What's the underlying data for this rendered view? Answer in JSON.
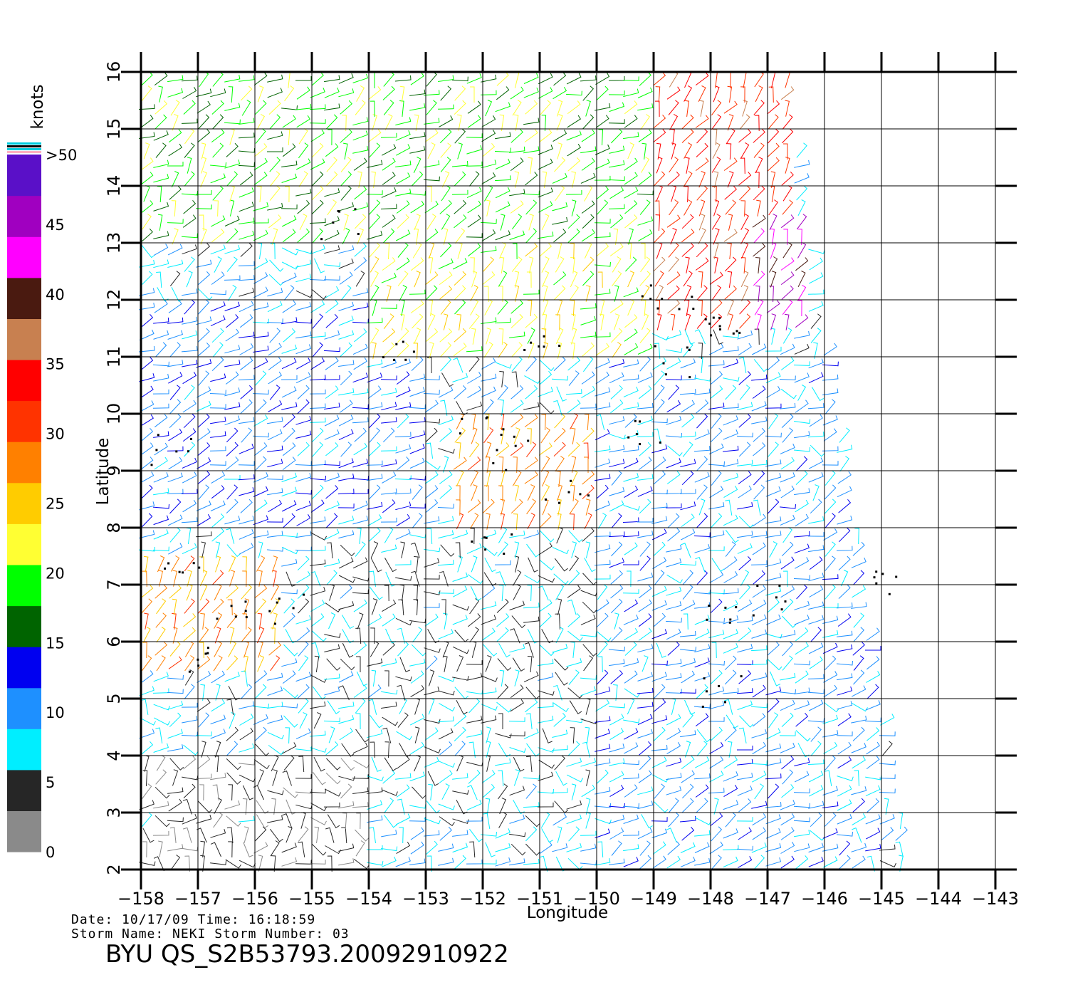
{
  "figure": {
    "xlabel": "Longitude",
    "ylabel": "Latitude",
    "colorbar_unit": "knots",
    "colorbar_labels": [
      "0",
      "5",
      "10",
      "15",
      "20",
      "25",
      "30",
      "35",
      "40",
      "45",
      ">50"
    ],
    "colorbar_colors": [
      "#8a8a8a",
      "#262626",
      "#00eeff",
      "#1e90ff",
      "#0000f0",
      "#006400",
      "#00ff00",
      "#ffff33",
      "#ffcc00",
      "#ff8000",
      "#ff3300",
      "#ff0000",
      "#c88050",
      "#4a1a10",
      "#ff00ff",
      "#a000c0",
      "#5a10c8"
    ],
    "footer": {
      "date_line": "Date: 10/17/09   Time: 16:18:59",
      "storm_line": "Storm Name: NEKI   Storm Number: 03",
      "product_id": "BYU QS_S2B53793.20092910922"
    }
  },
  "chart_data": {
    "type": "wind-barb map",
    "x_ticks": [
      "−158",
      "−157",
      "−156",
      "−155",
      "−154",
      "−153",
      "−152",
      "−151",
      "−150",
      "−149",
      "−148",
      "−147",
      "−146",
      "−145",
      "−144",
      "−143"
    ],
    "y_ticks": [
      "2",
      "3",
      "4",
      "5",
      "6",
      "7",
      "8",
      "9",
      "10",
      "11",
      "12",
      "13",
      "14",
      "15",
      "16"
    ],
    "xlim": [
      -158,
      -143
    ],
    "ylim": [
      2,
      16
    ],
    "grid": true,
    "wind_speed_scale": {
      "unit": "knots",
      "min": 0,
      "max": 50
    },
    "swath_corners_lonlat": [
      [
        -158,
        16
      ],
      [
        -146.6,
        16
      ],
      [
        -144.5,
        2
      ],
      [
        -158,
        2
      ]
    ],
    "speed_regions": [
      {
        "description": "core NE",
        "lon": [
          -149,
          -146.5
        ],
        "lat": [
          11.5,
          16
        ],
        "speed_knots": 33
      },
      {
        "description": "peak band",
        "lon": [
          -147.2,
          -146.2
        ],
        "lat": [
          11.5,
          13.5
        ],
        "speed_knots": 43
      },
      {
        "description": "north swath",
        "lon": [
          -158,
          -149
        ],
        "lat": [
          13,
          16
        ],
        "speed_knots": 19
      },
      {
        "description": "north-central",
        "lon": [
          -154,
          -149
        ],
        "lat": [
          11,
          13
        ],
        "speed_knots": 22
      },
      {
        "description": "rain band",
        "lon": [
          -152.5,
          -150
        ],
        "lat": [
          8,
          10
        ],
        "speed_knots": 28
      },
      {
        "description": "west rain band",
        "lon": [
          -158,
          -155.5
        ],
        "lat": [
          5.5,
          7.5
        ],
        "speed_knots": 27
      },
      {
        "description": "west",
        "lon": [
          -158,
          -153
        ],
        "lat": [
          8,
          12
        ],
        "speed_knots": 11
      },
      {
        "description": "central calm",
        "lon": [
          -155,
          -150
        ],
        "lat": [
          3,
          8
        ],
        "speed_knots": 6
      },
      {
        "description": "east swath",
        "lon": [
          -150,
          -145
        ],
        "lat": [
          2,
          11
        ],
        "speed_knots": 10
      },
      {
        "description": "southwest calm",
        "lon": [
          -158,
          -154
        ],
        "lat": [
          2,
          4
        ],
        "speed_knots": 3
      }
    ],
    "flagged_cells_lonlat": [
      [
        -154.5,
        13.3
      ],
      [
        -153.6,
        11.1
      ],
      [
        -151.0,
        11.2
      ],
      [
        -152.0,
        9.8
      ],
      [
        -151.5,
        9.3
      ],
      [
        -150.5,
        8.6
      ],
      [
        -151.8,
        7.8
      ],
      [
        -148.8,
        12.1
      ],
      [
        -148.1,
        11.8
      ],
      [
        -147.8,
        11.4
      ],
      [
        -148.7,
        10.9
      ],
      [
        -149.2,
        9.6
      ],
      [
        -147.9,
        6.4
      ],
      [
        -147.8,
        5.1
      ],
      [
        -147.0,
        6.7
      ],
      [
        -144.9,
        7.1
      ],
      [
        -157.5,
        9.4
      ],
      [
        -157.3,
        7.2
      ],
      [
        -156.5,
        6.6
      ],
      [
        -155.5,
        6.6
      ],
      [
        -157.2,
        5.6
      ]
    ]
  }
}
